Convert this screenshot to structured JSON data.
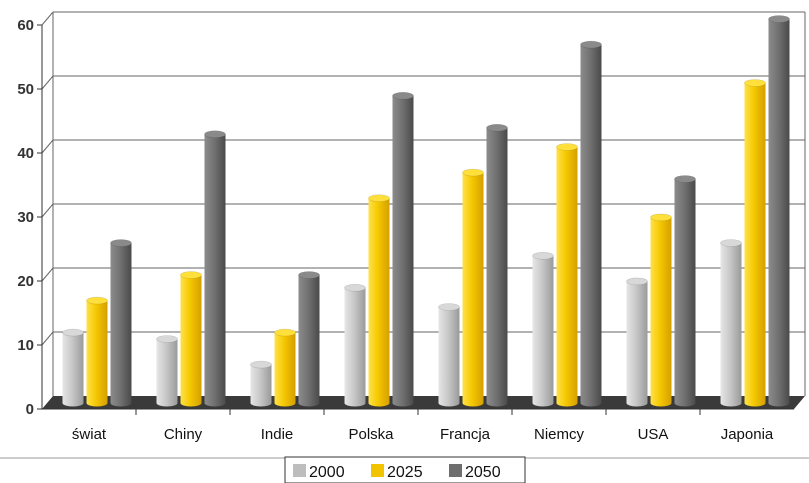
{
  "chart_data": {
    "type": "bar",
    "categories": [
      "świat",
      "Chiny",
      "Indie",
      "Polska",
      "Francja",
      "Niemcy",
      "USA",
      "Japonia"
    ],
    "series": [
      {
        "name": "2000",
        "values": [
          11,
          10,
          6,
          18,
          15,
          23,
          19,
          25
        ],
        "color": "#bdbdbd"
      },
      {
        "name": "2025",
        "values": [
          16,
          20,
          11,
          32,
          36,
          40,
          29,
          50
        ],
        "color": "#f2c400"
      },
      {
        "name": "2050",
        "values": [
          25,
          42,
          20,
          48,
          43,
          56,
          35,
          60
        ],
        "color": "#6e6e6e"
      }
    ],
    "yticks": [
      0,
      10,
      20,
      30,
      40,
      50,
      60
    ],
    "ylim": [
      0,
      60
    ],
    "grid": true,
    "legend": "bottom-center"
  }
}
